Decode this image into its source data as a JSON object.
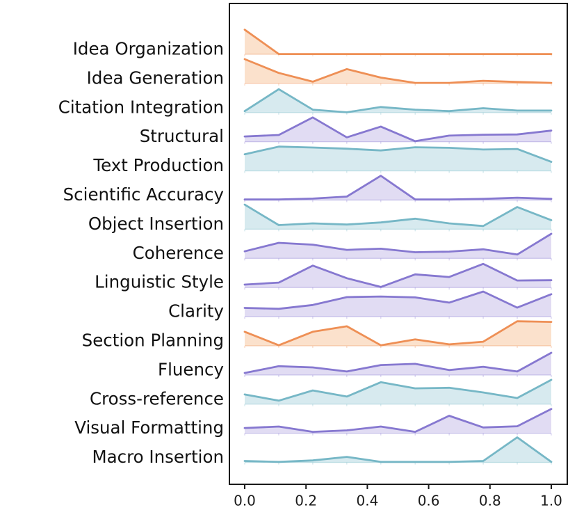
{
  "figure": {
    "kind": "ridgeline-density-plot",
    "background_color": "#ffffff",
    "frame_color": "#1a1a1a"
  },
  "chart_data": {
    "type": "area",
    "title": "",
    "xlabel": "",
    "ylabel": "",
    "xlim": [
      0.0,
      1.0
    ],
    "grid": false,
    "legend_position": "none",
    "x_tick_labels": [
      "0.0",
      "0.2",
      "0.4",
      "0.6",
      "0.8",
      "1.0"
    ],
    "x_tick_values": [
      0.0,
      0.2,
      0.4,
      0.6,
      0.8,
      1.0
    ],
    "x": [
      0.0,
      0.111,
      0.222,
      0.333,
      0.444,
      0.556,
      0.667,
      0.778,
      0.889,
      1.0
    ],
    "value_units": "relative density (fraction of row band height)",
    "rows": [
      {
        "label": "Idea Organization",
        "color": "orange",
        "values": [
          0.84,
          0.01,
          0.01,
          0.01,
          0.01,
          0.01,
          0.01,
          0.01,
          0.01,
          0.01
        ]
      },
      {
        "label": "Idea Generation",
        "color": "orange",
        "values": [
          0.83,
          0.36,
          0.06,
          0.49,
          0.2,
          0.02,
          0.02,
          0.09,
          0.05,
          0.02
        ]
      },
      {
        "label": "Citation Integration",
        "color": "teal",
        "values": [
          0.05,
          0.8,
          0.1,
          0.01,
          0.19,
          0.1,
          0.05,
          0.15,
          0.07,
          0.07
        ]
      },
      {
        "label": "Structural",
        "color": "purple",
        "values": [
          0.18,
          0.23,
          0.83,
          0.15,
          0.52,
          0.02,
          0.21,
          0.24,
          0.25,
          0.38
        ]
      },
      {
        "label": "Text Production",
        "color": "teal",
        "values": [
          0.57,
          0.83,
          0.8,
          0.76,
          0.7,
          0.81,
          0.79,
          0.73,
          0.75,
          0.31
        ]
      },
      {
        "label": "Scientific Accuracy",
        "color": "purple",
        "values": [
          0.02,
          0.02,
          0.05,
          0.12,
          0.83,
          0.02,
          0.02,
          0.04,
          0.08,
          0.04
        ]
      },
      {
        "label": "Object Insertion",
        "color": "teal",
        "values": [
          0.84,
          0.14,
          0.2,
          0.16,
          0.23,
          0.36,
          0.2,
          0.11,
          0.76,
          0.31
        ]
      },
      {
        "label": "Coherence",
        "color": "purple",
        "values": [
          0.24,
          0.53,
          0.47,
          0.29,
          0.33,
          0.21,
          0.23,
          0.31,
          0.13,
          0.84
        ]
      },
      {
        "label": "Linguistic Style",
        "color": "purple",
        "values": [
          0.1,
          0.17,
          0.75,
          0.32,
          0.02,
          0.45,
          0.36,
          0.81,
          0.24,
          0.25
        ]
      },
      {
        "label": "Clarity",
        "color": "purple",
        "values": [
          0.3,
          0.27,
          0.4,
          0.67,
          0.69,
          0.66,
          0.48,
          0.86,
          0.31,
          0.77
        ]
      },
      {
        "label": "Section Planning",
        "color": "orange",
        "values": [
          0.48,
          0.02,
          0.48,
          0.67,
          0.02,
          0.22,
          0.05,
          0.14,
          0.84,
          0.82
        ]
      },
      {
        "label": "Fluency",
        "color": "purple",
        "values": [
          0.07,
          0.3,
          0.26,
          0.12,
          0.34,
          0.38,
          0.17,
          0.28,
          0.12,
          0.76
        ]
      },
      {
        "label": "Cross-reference",
        "color": "teal",
        "values": [
          0.33,
          0.12,
          0.47,
          0.26,
          0.75,
          0.54,
          0.56,
          0.4,
          0.21,
          0.83
        ]
      },
      {
        "label": "Visual Formatting",
        "color": "purple",
        "values": [
          0.18,
          0.23,
          0.05,
          0.1,
          0.23,
          0.05,
          0.6,
          0.2,
          0.24,
          0.83
        ]
      },
      {
        "label": "Macro Insertion",
        "color": "teal",
        "values": [
          0.05,
          0.02,
          0.07,
          0.19,
          0.02,
          0.02,
          0.02,
          0.05,
          0.86,
          0.02
        ]
      }
    ],
    "palette": {
      "orange": {
        "line": "#ee8f55",
        "fill": "rgba(243,162,97,0.32)",
        "baseline": "rgba(238,143,85,0.35)"
      },
      "teal": {
        "line": "#76b7c6",
        "fill": "rgba(150,201,214,0.38)",
        "baseline": "rgba(118,183,198,0.35)"
      },
      "purple": {
        "line": "#8678d0",
        "fill": "rgba(155,140,216,0.30)",
        "baseline": "rgba(134,120,208,0.35)"
      }
    },
    "text_color": "#111111",
    "axis_color": "#1a1a1a"
  }
}
